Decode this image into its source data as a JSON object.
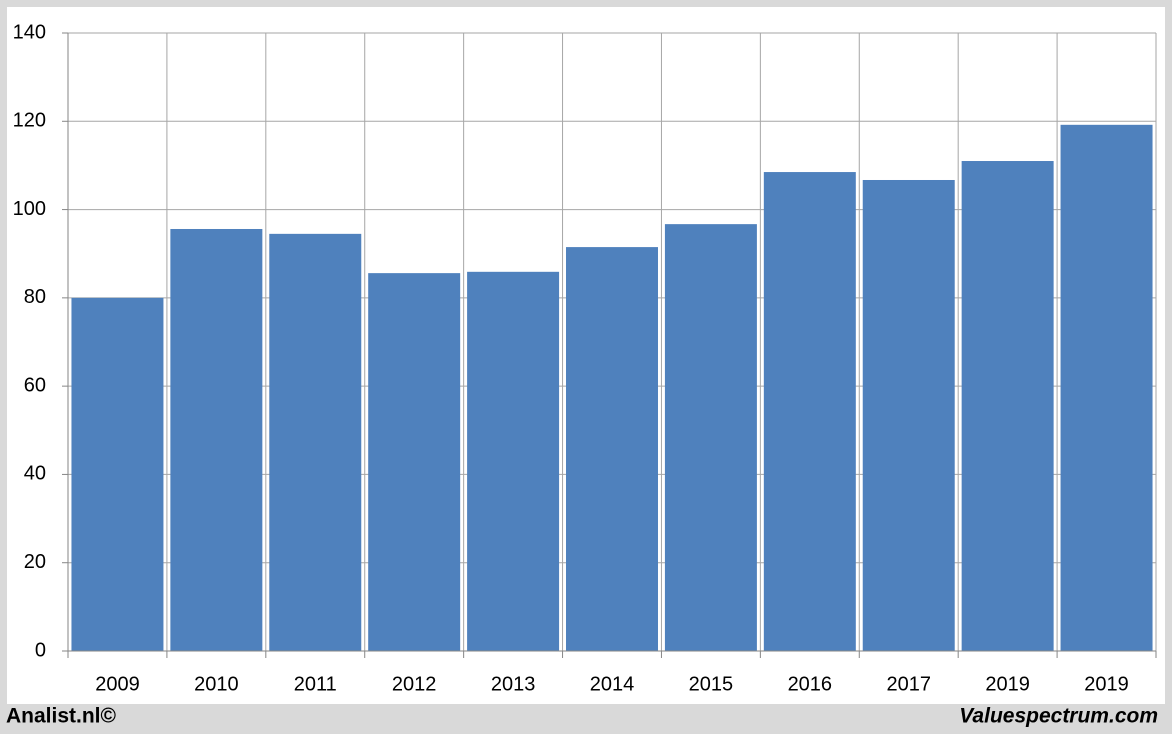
{
  "chart_data": {
    "type": "bar",
    "categories": [
      "2009",
      "2010",
      "2011",
      "2012",
      "2013",
      "2014",
      "2015",
      "2016",
      "2017",
      "2019",
      "2019"
    ],
    "values": [
      80.0,
      95.6,
      94.5,
      85.6,
      85.9,
      91.5,
      96.7,
      108.5,
      106.7,
      111.0,
      119.2
    ],
    "color": "#4f81bd",
    "ylim": [
      0,
      140
    ],
    "yticks": [
      0,
      20,
      40,
      60,
      80,
      100,
      120,
      140
    ],
    "grid": true,
    "footer_left": "Analist.nl©",
    "footer_right": "Valuespectrum.com"
  }
}
